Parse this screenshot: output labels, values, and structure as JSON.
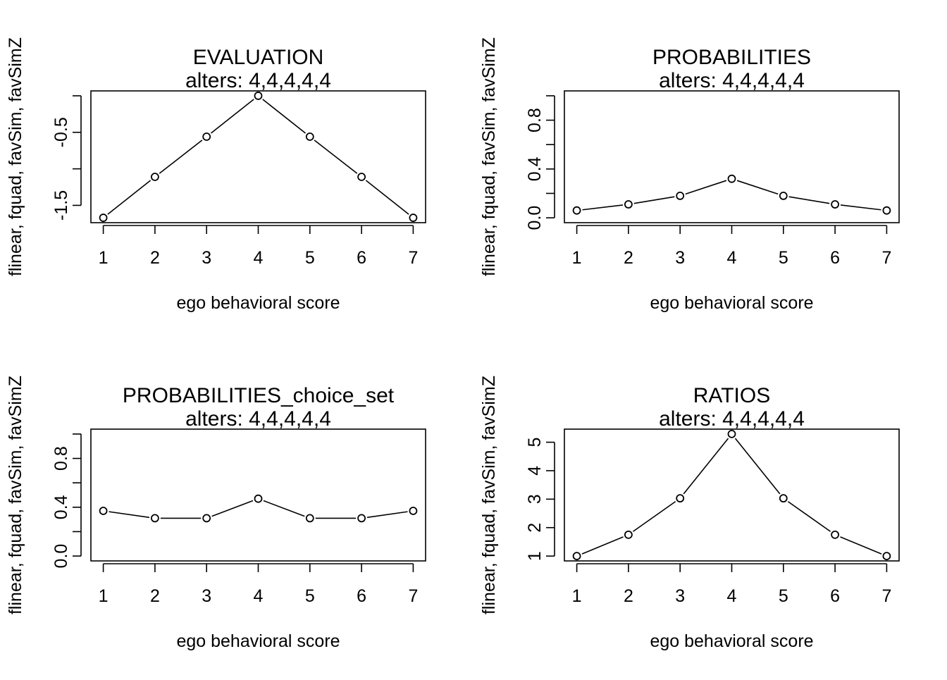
{
  "chart_data": [
    {
      "type": "line",
      "title": "EVALUATION",
      "subtitle": "alters: 4,4,4,4,4",
      "xlabel": "ego behavioral score",
      "ylabel": "flinear, fquad, favSim, favSimZ",
      "x": [
        1,
        2,
        3,
        4,
        5,
        6,
        7
      ],
      "values": [
        -1.67,
        -1.11,
        -0.56,
        0.0,
        -0.56,
        -1.11,
        -1.67
      ],
      "xticks": [
        "1",
        "2",
        "3",
        "4",
        "5",
        "6",
        "7"
      ],
      "yticks": [
        -1.5,
        -1.0,
        -0.5,
        0.0
      ],
      "yticklabels": [
        "-1.5",
        "",
        "-0.5",
        ""
      ],
      "xlim": [
        0.76,
        7.24
      ],
      "ylim": [
        -1.737,
        0.067
      ],
      "grid": false,
      "plot_type": "both (points and lines)"
    },
    {
      "type": "line",
      "title": "PROBABILITIES",
      "subtitle": "alters: 4,4,4,4,4",
      "xlabel": "ego behavioral score",
      "ylabel": "flinear, fquad, favSim, favSimZ",
      "x": [
        1,
        2,
        3,
        4,
        5,
        6,
        7
      ],
      "values": [
        0.06,
        0.11,
        0.18,
        0.32,
        0.18,
        0.11,
        0.06
      ],
      "xticks": [
        "1",
        "2",
        "3",
        "4",
        "5",
        "6",
        "7"
      ],
      "yticks": [
        0.0,
        0.2,
        0.4,
        0.6,
        0.8,
        1.0
      ],
      "yticklabels": [
        "0.0",
        "",
        "0.4",
        "",
        "0.8",
        ""
      ],
      "xlim": [
        0.76,
        7.24
      ],
      "ylim": [
        -0.04,
        1.04
      ],
      "grid": false,
      "plot_type": "both (points and lines)"
    },
    {
      "type": "line",
      "title": "PROBABILITIES_choice_set",
      "subtitle": "alters: 4,4,4,4,4",
      "xlabel": "ego behavioral score",
      "ylabel": "flinear, fquad, favSim, favSimZ",
      "x": [
        1,
        2,
        3,
        4,
        5,
        6,
        7
      ],
      "values": [
        0.37,
        0.31,
        0.31,
        0.47,
        0.31,
        0.31,
        0.37
      ],
      "xticks": [
        "1",
        "2",
        "3",
        "4",
        "5",
        "6",
        "7"
      ],
      "yticks": [
        0.0,
        0.2,
        0.4,
        0.6,
        0.8,
        1.0
      ],
      "yticklabels": [
        "0.0",
        "",
        "0.4",
        "",
        "0.8",
        ""
      ],
      "xlim": [
        0.76,
        7.24
      ],
      "ylim": [
        -0.04,
        1.04
      ],
      "grid": false,
      "plot_type": "both (points and lines)"
    },
    {
      "type": "line",
      "title": "RATIOS",
      "subtitle": "alters: 4,4,4,4,4",
      "xlabel": "ego behavioral score",
      "ylabel": "flinear, fquad, favSim, favSimZ",
      "x": [
        1,
        2,
        3,
        4,
        5,
        6,
        7
      ],
      "values": [
        1.0,
        1.75,
        3.03,
        5.29,
        3.03,
        1.75,
        1.0
      ],
      "xticks": [
        "1",
        "2",
        "3",
        "4",
        "5",
        "6",
        "7"
      ],
      "yticks": [
        1,
        2,
        3,
        4,
        5
      ],
      "yticklabels": [
        "1",
        "2",
        "3",
        "4",
        "5"
      ],
      "xlim": [
        0.76,
        7.24
      ],
      "ylim": [
        0.83,
        5.46
      ],
      "grid": false,
      "plot_type": "both (points and lines)"
    }
  ]
}
